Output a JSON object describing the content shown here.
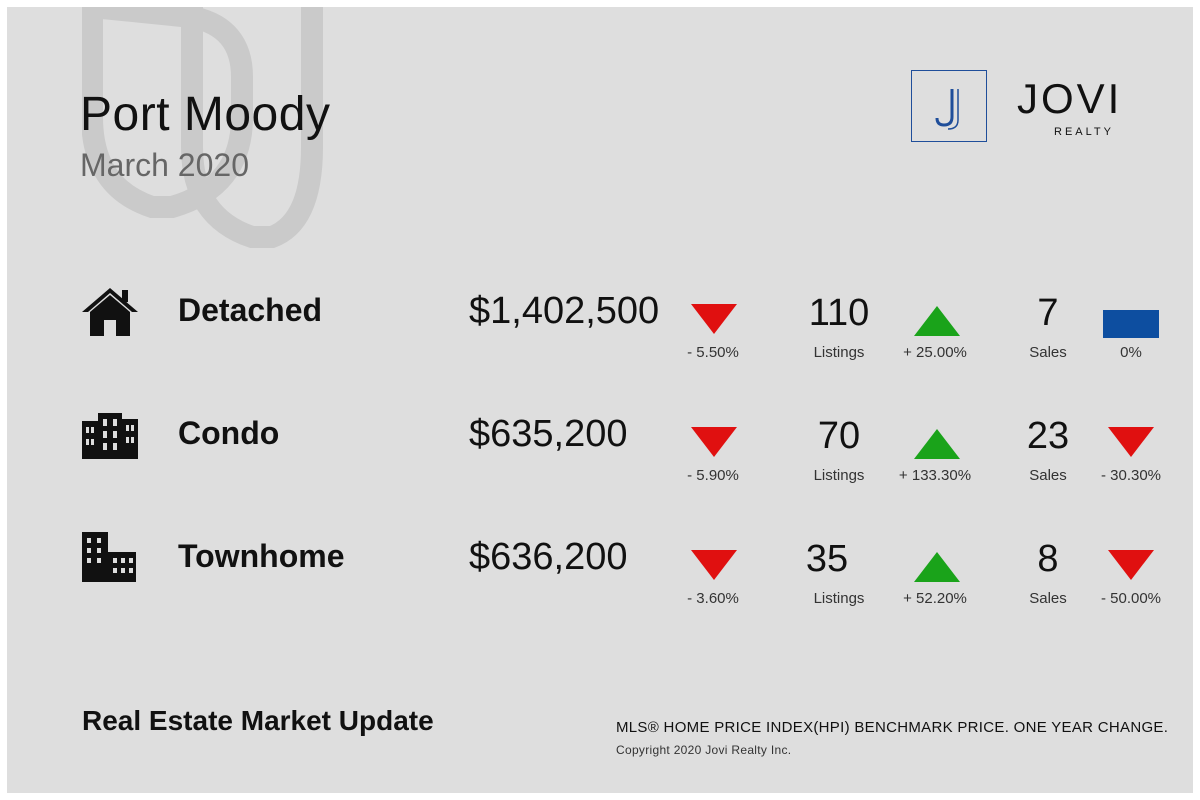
{
  "header": {
    "title": "Port Moody",
    "subtitle": "March 2020"
  },
  "logo": {
    "mark": "J",
    "name": "JOVI",
    "sub": "REALTY",
    "color": "#1f4e9a"
  },
  "colors": {
    "up": "#1aa31a",
    "down": "#e01010",
    "flat": "#0d4ea0",
    "background": "#dedede"
  },
  "rows": [
    {
      "type": "Detached",
      "icon": "house-icon",
      "price": "$1,402,500",
      "price_change": "- 5.50%",
      "price_trend": "down",
      "listings": "110",
      "listings_label": "Listings",
      "listings_change": "+ 25.00%",
      "listings_trend": "up",
      "sales": "7",
      "sales_label": "Sales",
      "sales_change": "0%",
      "sales_trend": "flat"
    },
    {
      "type": "Condo",
      "icon": "condo-building-icon",
      "price": "$635,200",
      "price_change": "- 5.90%",
      "price_trend": "down",
      "listings": "70",
      "listings_label": "Listings",
      "listings_change": "+ 133.30%",
      "listings_trend": "up",
      "sales": "23",
      "sales_label": "Sales",
      "sales_change": "- 30.30%",
      "sales_trend": "down"
    },
    {
      "type": "Townhome",
      "icon": "townhome-building-icon",
      "price": "$636,200",
      "price_change": "- 3.60%",
      "price_trend": "down",
      "listings": "35",
      "listings_label": "Listings",
      "listings_change": "+ 52.20%",
      "listings_trend": "up",
      "sales": "8",
      "sales_label": "Sales",
      "sales_change": "- 50.00%",
      "sales_trend": "down"
    }
  ],
  "footer": {
    "title": "Real Estate Market Update",
    "note": "MLS® HOME PRICE INDEX(HPI) BENCHMARK PRICE. ONE YEAR CHANGE.",
    "copyright": "Copyright 2020 Jovi Realty Inc."
  }
}
